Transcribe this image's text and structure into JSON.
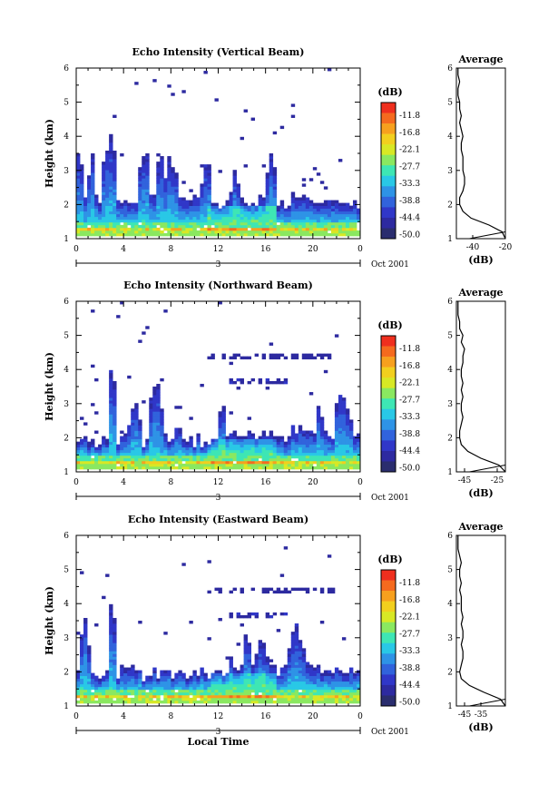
{
  "figure": {
    "xlabel": "Local Time",
    "colorbar_label": "(dB)",
    "colorbar_ticks": [
      "-11.8",
      "-16.8",
      "-22.1",
      "-27.7",
      "-33.3",
      "-38.8",
      "-44.4",
      "-50.0"
    ],
    "colorbar_colors": [
      "#ef2f1e",
      "#f56a1e",
      "#f7a01e",
      "#f2cf1e",
      "#d8e825",
      "#8ae860",
      "#3ee6b4",
      "#29c8e6",
      "#2e93e6",
      "#3163dc",
      "#3037c8",
      "#2d2aa0",
      "#2a2d6e"
    ],
    "date_label": "Oct 2001",
    "day_label": "3",
    "x_ticks": [
      "0",
      "4",
      "8",
      "12",
      "16",
      "20",
      "0"
    ],
    "y_ticks": [
      "1",
      "2",
      "3",
      "4",
      "5",
      "6"
    ],
    "avg_title": "Average",
    "avg_xlabel": "(dB)"
  },
  "chart_data": [
    {
      "type": "heatmap",
      "title": "Echo Intensity (Vertical Beam)",
      "ylabel": "Height (km)",
      "xlabel": "",
      "xlim": [
        0,
        24
      ],
      "ylim": [
        1,
        6
      ],
      "clim": [
        -50.0,
        -11.8
      ],
      "profile": {
        "type": "line",
        "title": "Average",
        "xlabel": "(dB)",
        "xlim": [
          -50,
          -20
        ],
        "x_ticks": [
          "-40",
          "-20"
        ],
        "height": [
          1.0,
          1.2,
          1.4,
          1.6,
          1.8,
          2.0,
          2.2,
          2.4,
          2.6,
          2.8,
          3.0,
          3.2,
          3.4,
          3.6,
          3.8,
          4.0,
          4.2,
          4.4,
          4.6,
          4.8,
          5.0,
          5.2,
          5.4,
          5.6,
          5.8,
          6.0
        ],
        "value": [
          -20,
          -22,
          -30,
          -41,
          -46,
          -48,
          -48,
          -46,
          -45,
          -45,
          -46,
          -46,
          -46,
          -47,
          -47,
          -46,
          -47,
          -48,
          -47,
          -48,
          -48,
          -49,
          -49,
          -48,
          -49,
          -49
        ]
      }
    },
    {
      "type": "heatmap",
      "title": "Echo Intensity (Northward Beam)",
      "ylabel": "Height (km)",
      "xlabel": "",
      "xlim": [
        0,
        24
      ],
      "ylim": [
        1,
        6
      ],
      "clim": [
        -50.0,
        -11.8
      ],
      "profile": {
        "type": "line",
        "title": "Average",
        "xlabel": "(dB)",
        "xlim": [
          -50,
          -20
        ],
        "x_ticks": [
          "-45",
          "-25"
        ],
        "height": [
          1.0,
          1.2,
          1.4,
          1.6,
          1.8,
          2.0,
          2.2,
          2.4,
          2.6,
          2.8,
          3.0,
          3.2,
          3.4,
          3.6,
          3.8,
          4.0,
          4.2,
          4.4,
          4.6,
          4.8,
          5.0,
          5.2,
          5.4,
          5.6,
          5.8,
          6.0
        ],
        "value": [
          -20,
          -24,
          -35,
          -43,
          -47,
          -48,
          -48,
          -47,
          -46,
          -47,
          -47,
          -46,
          -47,
          -46,
          -47,
          -47,
          -46,
          -46,
          -45,
          -47,
          -46,
          -48,
          -48,
          -49,
          -49,
          -49
        ]
      }
    },
    {
      "type": "heatmap",
      "title": "Echo Intensity (Eastward Beam)",
      "ylabel": "Height (km)",
      "xlabel": "Local Time",
      "xlim": [
        0,
        24
      ],
      "ylim": [
        1,
        6
      ],
      "clim": [
        -50.0,
        -11.8
      ],
      "profile": {
        "type": "line",
        "title": "Average",
        "xlabel": "(dB)",
        "xlim": [
          -50,
          -20
        ],
        "x_ticks": [
          "-45",
          "-35"
        ],
        "height": [
          1.0,
          1.2,
          1.4,
          1.6,
          1.8,
          2.0,
          2.2,
          2.4,
          2.6,
          2.8,
          3.0,
          3.2,
          3.4,
          3.6,
          3.8,
          4.0,
          4.2,
          4.4,
          4.6,
          4.8,
          5.0,
          5.2,
          5.4,
          5.6,
          5.8,
          6.0
        ],
        "value": [
          -20,
          -23,
          -33,
          -42,
          -47,
          -48,
          -47,
          -46,
          -46,
          -47,
          -46,
          -46,
          -47,
          -46,
          -47,
          -47,
          -47,
          -48,
          -47,
          -48,
          -48,
          -47,
          -48,
          -49,
          -49,
          -49
        ]
      }
    }
  ]
}
